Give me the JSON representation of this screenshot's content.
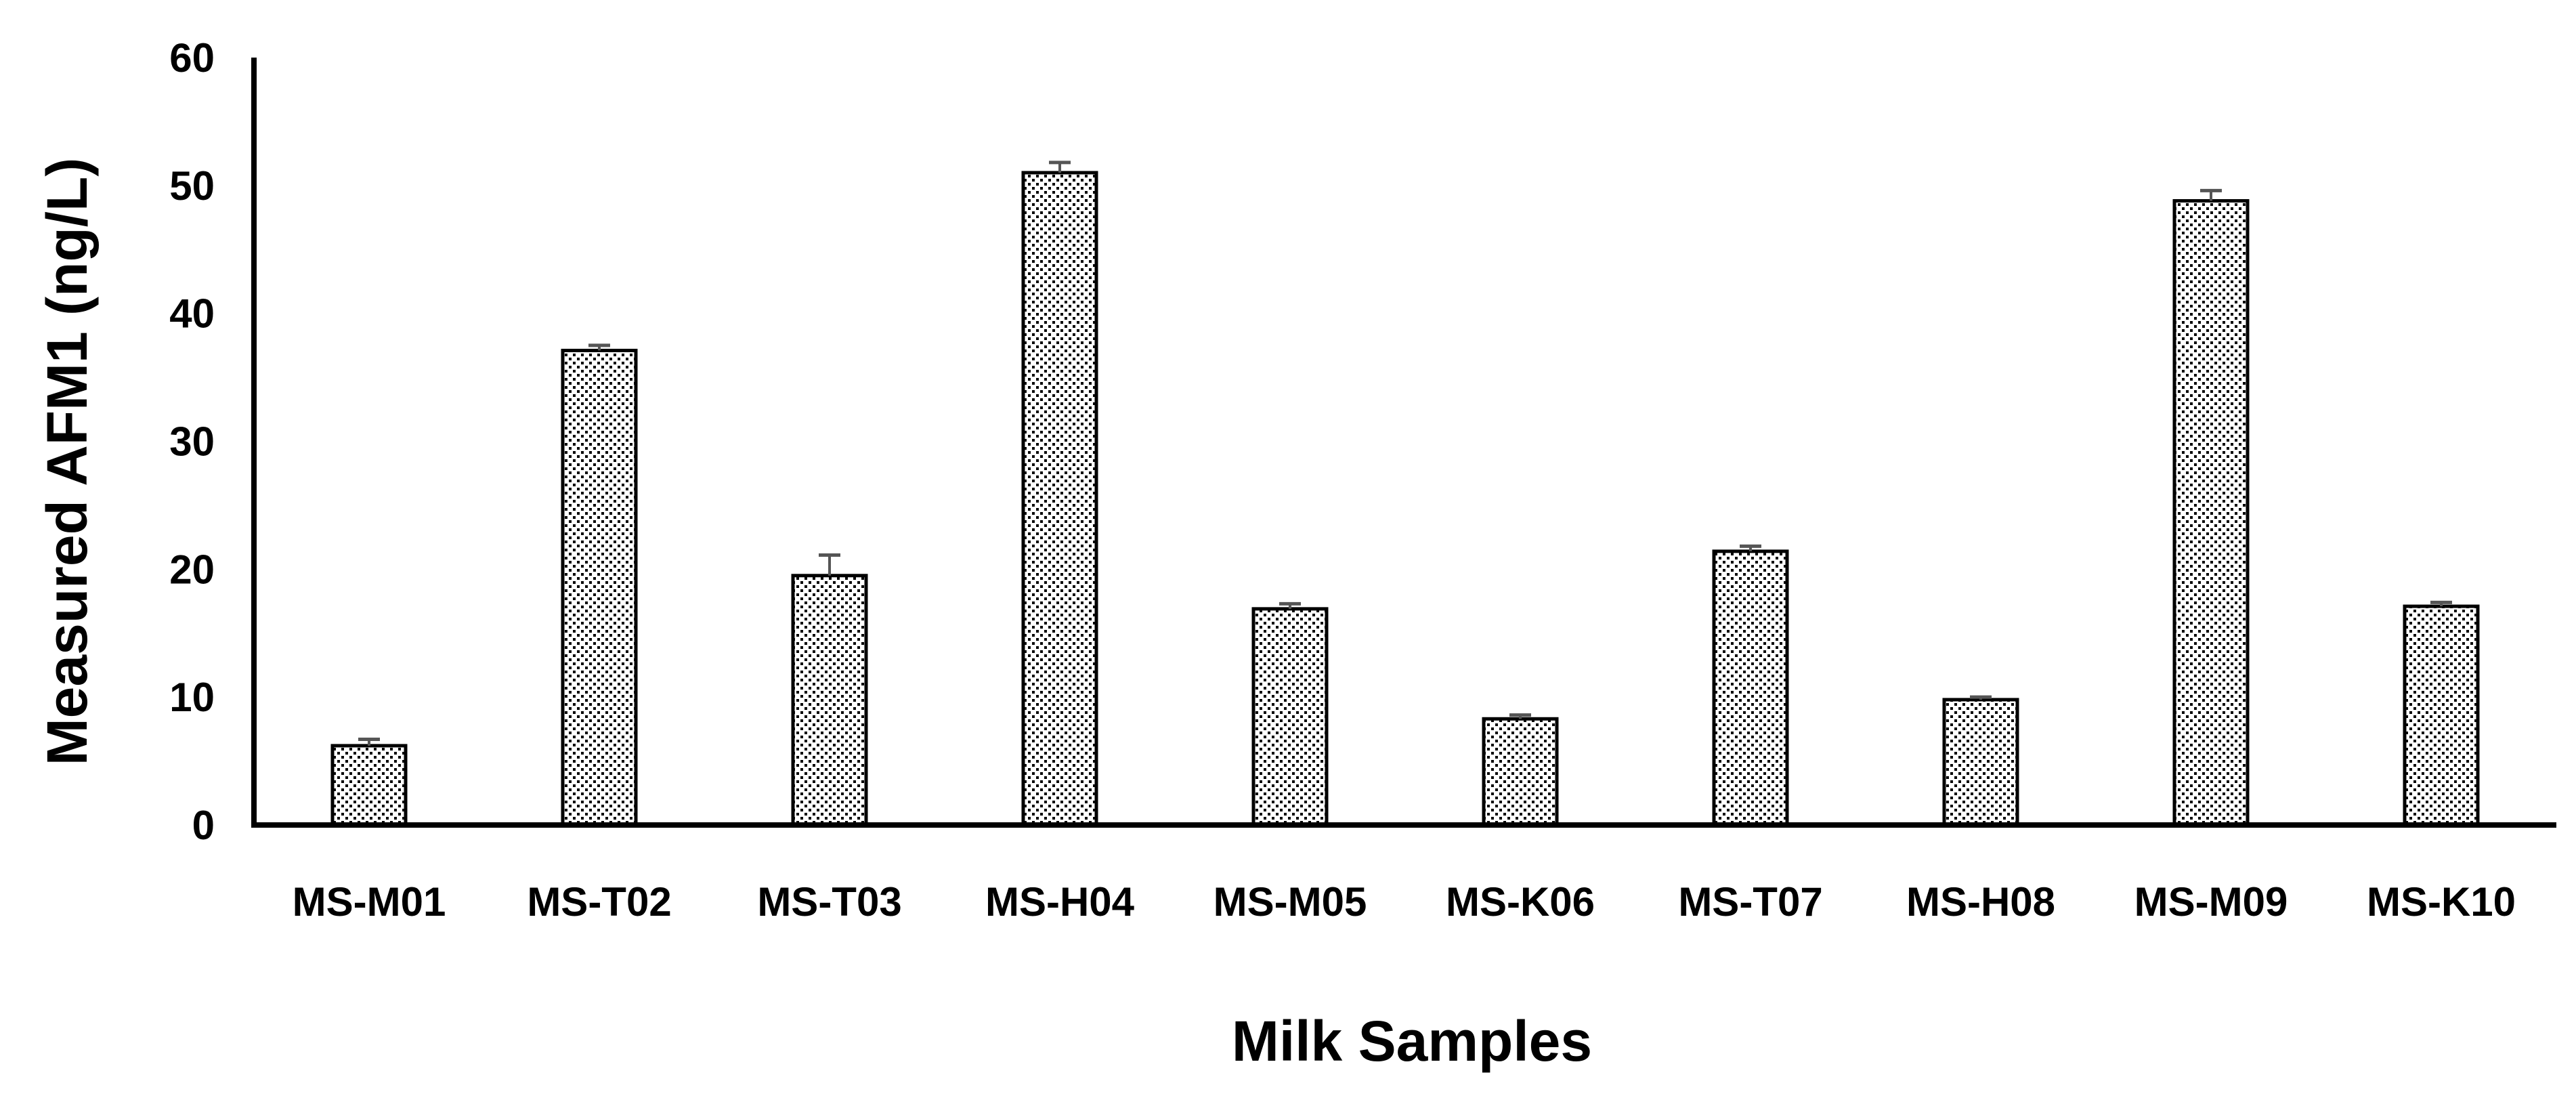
{
  "chart_data": {
    "type": "bar",
    "title": "",
    "xlabel": "Milk Samples",
    "ylabel": "Measured AFM1 (ng/L)",
    "ylim": [
      0,
      60
    ],
    "yticks": [
      0,
      10,
      20,
      30,
      40,
      50,
      60
    ],
    "grid": false,
    "legend": "none",
    "bar_pattern": "dotted",
    "colors": {
      "bar_fill": "#ffffff",
      "bar_dots": "#000000",
      "bar_stroke": "#000000",
      "error_bar": "#555555",
      "axis": "#000000"
    },
    "categories": [
      "MS-M01",
      "MS-T02",
      "MS-T03",
      "MS-H04",
      "MS-M05",
      "MS-K06",
      "MS-T07",
      "MS-H08",
      "MS-M09",
      "MS-K10"
    ],
    "series": [
      {
        "values": [
          6.2,
          37.1,
          19.5,
          51.0,
          16.9,
          8.3,
          21.4,
          9.8,
          48.8,
          17.1
        ],
        "error": [
          0.5,
          0.4,
          1.6,
          0.8,
          0.4,
          0.3,
          0.4,
          0.2,
          0.8,
          0.3
        ]
      }
    ]
  }
}
